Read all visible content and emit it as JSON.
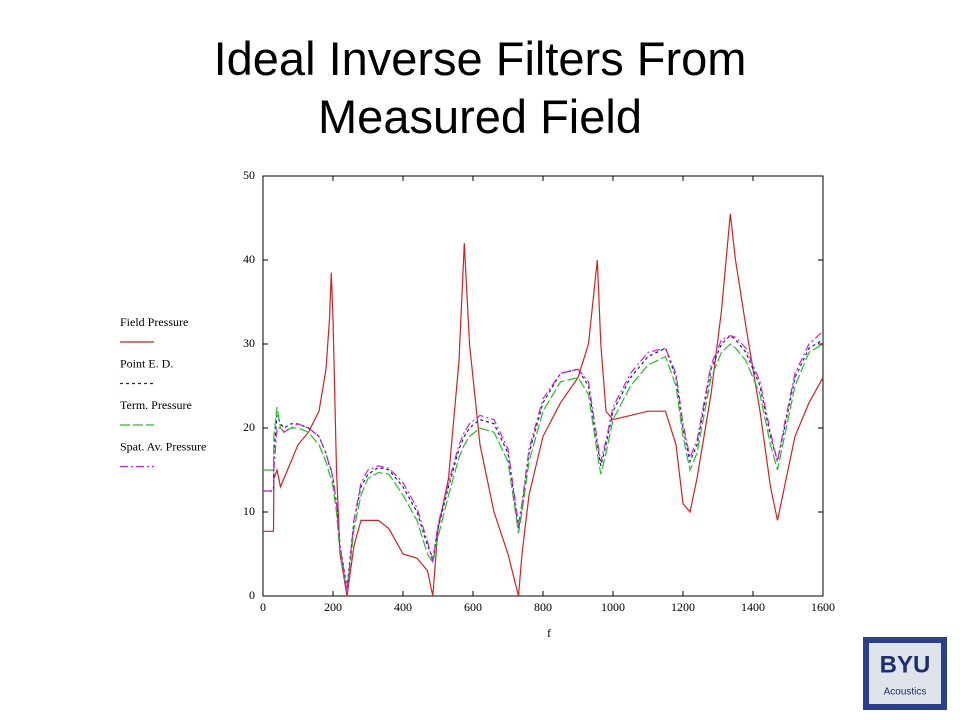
{
  "chart_data": {
    "type": "line",
    "title": "Ideal Inverse Filters From Measured Field",
    "x_label": "f",
    "x": [
      0,
      30,
      31,
      40,
      50,
      60,
      80,
      100,
      130,
      160,
      180,
      190,
      195,
      200,
      210,
      220,
      240,
      260,
      280,
      300,
      330,
      360,
      400,
      440,
      470,
      485,
      500,
      530,
      560,
      575,
      590,
      620,
      660,
      700,
      730,
      740,
      760,
      800,
      850,
      900,
      930,
      955,
      965,
      980,
      1000,
      1050,
      1100,
      1150,
      1180,
      1200,
      1220,
      1240,
      1280,
      1310,
      1335,
      1350,
      1380,
      1420,
      1450,
      1470,
      1490,
      1520,
      1560,
      1600
    ],
    "series": [
      {
        "name": "Field Pressure",
        "color": "#d42020",
        "dash": "none",
        "values": [
          7.7,
          7.7,
          14,
          15,
          13,
          14,
          16,
          18,
          19.5,
          22,
          27,
          33,
          38.5,
          33,
          15,
          5,
          0,
          6,
          9,
          9,
          9,
          8,
          5,
          4.5,
          3,
          0,
          8,
          14,
          28,
          42,
          30,
          18,
          10,
          5,
          0,
          5,
          12,
          19,
          23,
          26,
          30,
          40,
          30,
          22,
          21,
          21.5,
          22,
          22,
          18,
          11,
          10,
          14,
          24,
          34,
          45.5,
          40,
          32,
          22,
          13,
          9,
          13,
          19,
          23,
          26
        ]
      },
      {
        "name": "Point E. D.",
        "color": "#1a1a9a",
        "dash": "3,3",
        "values": [
          12.5,
          12.5,
          17,
          21.5,
          20.5,
          20,
          20.5,
          20.5,
          20,
          19,
          17,
          15.5,
          15,
          14,
          11,
          6,
          1,
          9,
          13,
          14.5,
          15.3,
          15,
          13,
          10,
          6,
          4.5,
          8,
          13,
          17.5,
          19,
          20,
          21,
          20.5,
          17,
          8,
          10.5,
          17,
          23,
          26.5,
          27,
          25,
          18,
          15.5,
          18,
          22,
          26,
          28.5,
          29.5,
          26,
          20,
          16,
          18,
          27,
          30,
          31,
          30.5,
          29,
          25,
          19,
          16,
          20,
          26,
          29.5,
          30.5
        ]
      },
      {
        "name": "Term.  Pressure",
        "color": "#22c022",
        "dash": "10,3",
        "values": [
          15,
          15,
          19,
          22.5,
          20,
          19.5,
          20,
          20,
          19.5,
          18,
          16,
          14.5,
          14,
          13,
          10,
          5,
          0.5,
          8,
          12,
          14,
          14.7,
          14.5,
          12,
          9,
          5,
          4,
          7,
          12,
          16.5,
          18,
          19,
          20,
          19.5,
          16,
          7.5,
          10,
          16,
          22,
          25.5,
          26,
          24,
          17,
          14.5,
          17,
          21,
          25,
          27.5,
          28.5,
          25,
          19,
          15,
          17,
          26,
          29,
          30,
          29.5,
          28,
          24,
          18,
          15,
          19,
          25,
          29,
          30
        ]
      },
      {
        "name": "Spat. Av. Pressure",
        "color": "#d020d0",
        "dash": "8,3,2,3",
        "values": [
          12.5,
          12.5,
          15,
          20,
          20,
          19.5,
          20,
          20.5,
          20,
          19,
          17,
          15.5,
          15,
          14,
          11,
          6,
          0.5,
          9,
          13.5,
          15,
          15.5,
          15.2,
          13.5,
          10.5,
          6.5,
          4,
          8.5,
          13.5,
          18,
          19.5,
          20.5,
          21.5,
          21,
          17.5,
          8.5,
          11,
          17.5,
          23.5,
          26.5,
          27,
          25.5,
          18.5,
          16,
          18.5,
          22.5,
          26.5,
          29,
          29.5,
          26.5,
          20.5,
          16.5,
          18.5,
          27.5,
          30.5,
          31,
          30.8,
          29.5,
          25.5,
          19.5,
          16,
          20.5,
          26.5,
          30,
          31.5
        ]
      }
    ],
    "xlim": [
      0,
      1600
    ],
    "xticks": [
      0,
      200,
      400,
      600,
      800,
      1000,
      1200,
      1400,
      1600
    ],
    "ylim": [
      0,
      50
    ],
    "yticks": [
      0,
      10,
      20,
      30,
      40,
      50
    ],
    "grid": false
  },
  "logo": {
    "text": "BYU",
    "subtext": "Acoustics"
  }
}
